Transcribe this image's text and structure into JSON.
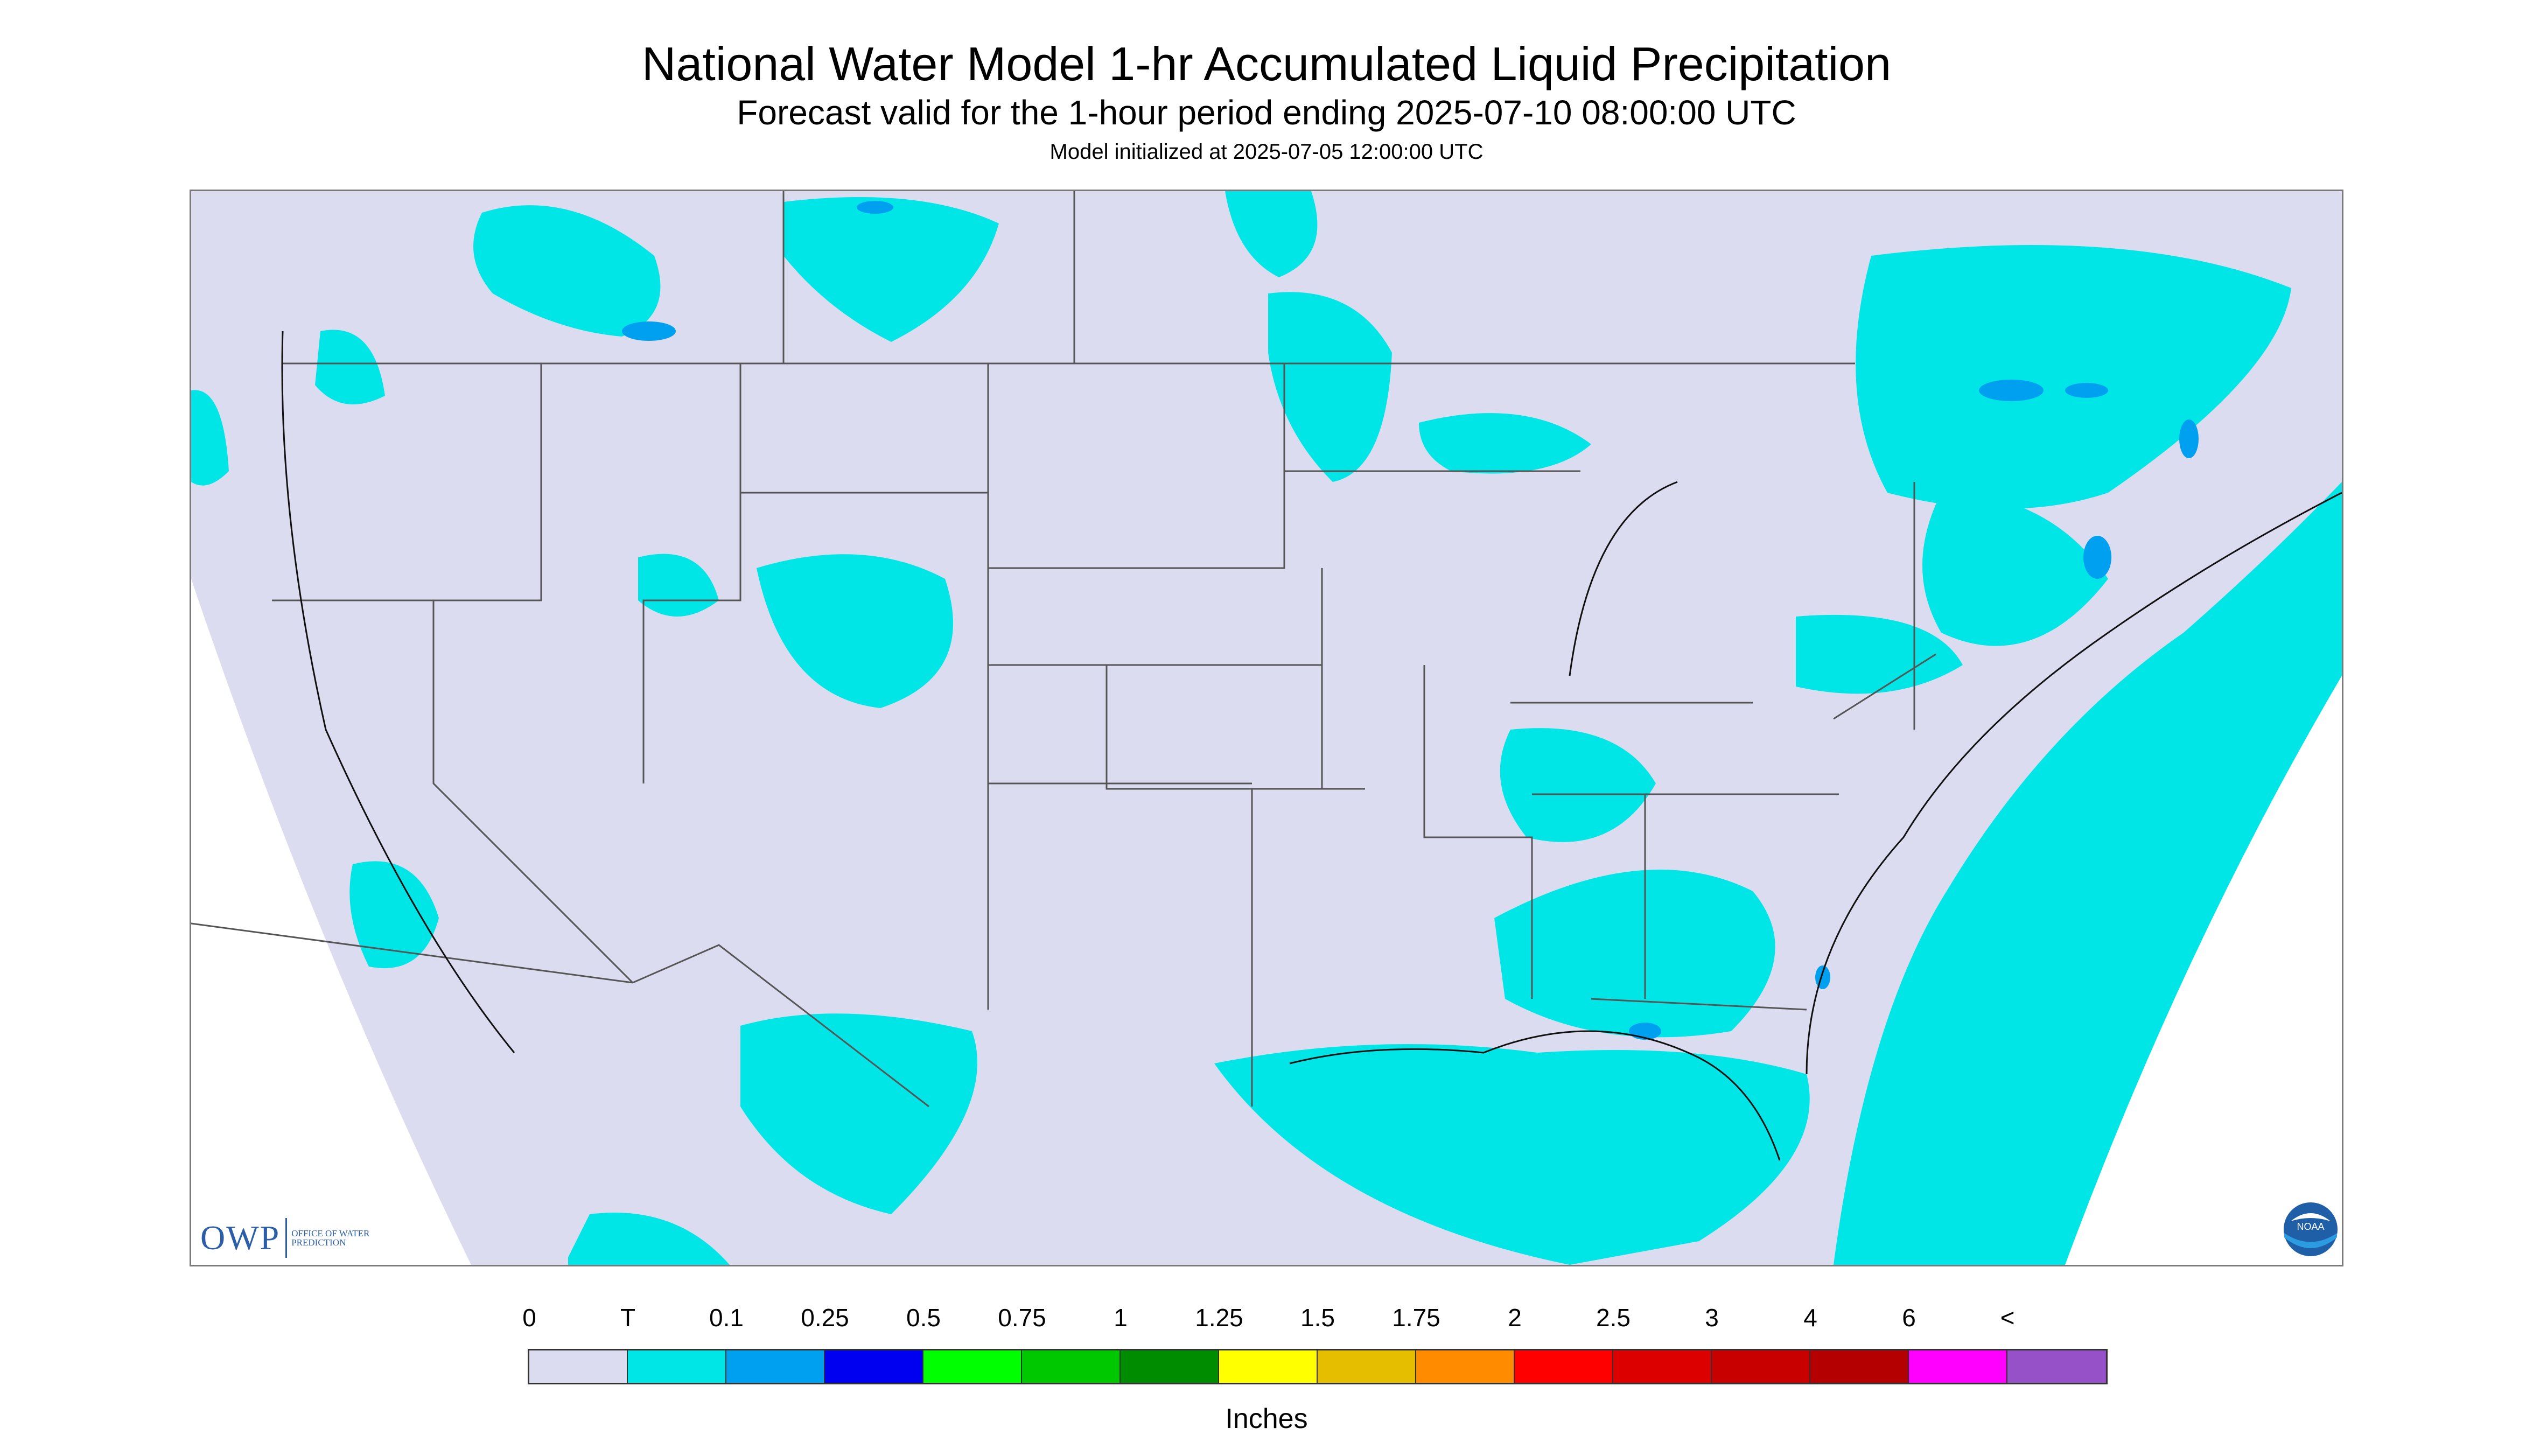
{
  "title": "National Water Model 1-hr Accumulated Liquid Precipitation",
  "subtitle": "Forecast valid for the 1-hour period ending 2025-07-10 08:00:00 UTC",
  "initialized": "Model initialized at 2025-07-05 12:00:00 UTC",
  "map": {
    "region": "CONUS",
    "background_color": "#dcdcf0",
    "outside_domain_color": "#ffffff",
    "state_line_color": "#555555",
    "dominant_precip_category": "T"
  },
  "legend": {
    "ticks": [
      "0",
      "T",
      "0.1",
      "0.25",
      "0.5",
      "0.75",
      "1",
      "1.25",
      "1.5",
      "1.75",
      "2",
      "2.5",
      "3",
      "4",
      "6",
      "<"
    ],
    "colors": [
      "#dcdcf0",
      "#00e6e6",
      "#00a0f0",
      "#0000f0",
      "#00ff00",
      "#00c800",
      "#008c00",
      "#ffff00",
      "#e6be00",
      "#ff8c00",
      "#ff0000",
      "#dc0000",
      "#c80000",
      "#b40000",
      "#ff00ff",
      "#9650c8"
    ],
    "units": "Inches"
  },
  "logos": {
    "owp_mark": "OWP",
    "owp_text": "OFFICE OF WATER PREDICTION",
    "noaa_icon": "noaa-logo-icon",
    "noaa_text": "NOAA"
  }
}
